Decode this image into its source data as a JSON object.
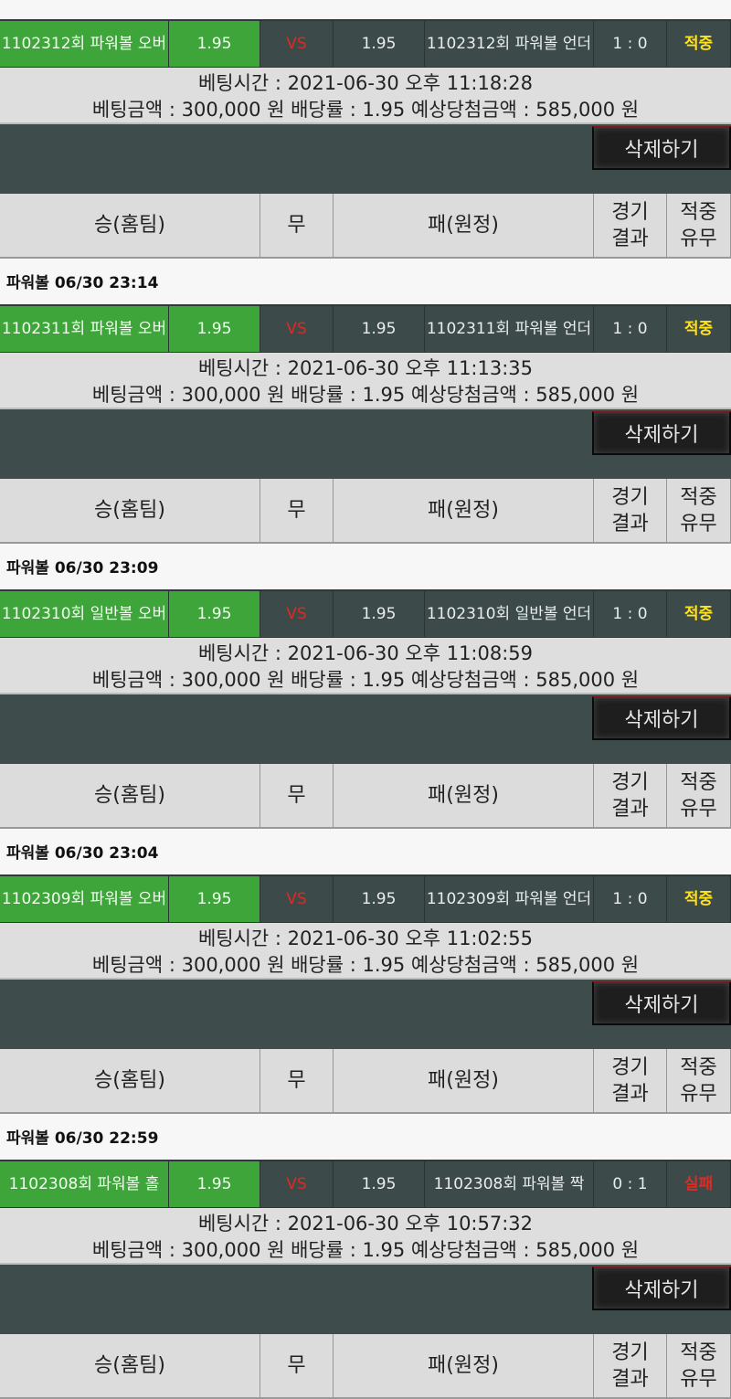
{
  "header_row": {
    "home": "승(홈팀)",
    "draw": "무",
    "away": "패(원정)",
    "result": "경기\n결과",
    "hit": "적중\n유무"
  },
  "delete_label": "삭제하기",
  "colors": {
    "selected": "#3ea53a",
    "vs": "#e02a22",
    "win": "#ffe21a",
    "lose": "#e02a22"
  },
  "bets": [
    {
      "label": "",
      "home": "1102312회 파워볼 오버",
      "home_odds": "1.95",
      "vs": "VS",
      "away_odds": "1.95",
      "away": "1102312회 파워볼 언더",
      "score": "1 : 0",
      "status": "적중",
      "win": true,
      "time": "베팅시간 : 2021-06-30 오후 11:18:28",
      "amount": "베팅금액 : 300,000 원 배당률 : 1.95 예상당첨금액 : 585,000 원"
    },
    {
      "label": "파워볼 06/30 23:14",
      "home": "1102311회 파워볼 오버",
      "home_odds": "1.95",
      "vs": "VS",
      "away_odds": "1.95",
      "away": "1102311회 파워볼 언더",
      "score": "1 : 0",
      "status": "적중",
      "win": true,
      "time": "베팅시간 : 2021-06-30 오후 11:13:35",
      "amount": "베팅금액 : 300,000 원 배당률 : 1.95 예상당첨금액 : 585,000 원"
    },
    {
      "label": "파워볼 06/30 23:09",
      "home": "1102310회 일반볼 오버",
      "home_odds": "1.95",
      "vs": "VS",
      "away_odds": "1.95",
      "away": "1102310회 일반볼 언더",
      "score": "1 : 0",
      "status": "적중",
      "win": true,
      "time": "베팅시간 : 2021-06-30 오후 11:08:59",
      "amount": "베팅금액 : 300,000 원 배당률 : 1.95 예상당첨금액 : 585,000 원"
    },
    {
      "label": "파워볼 06/30 23:04",
      "home": "1102309회 파워볼 오버",
      "home_odds": "1.95",
      "vs": "VS",
      "away_odds": "1.95",
      "away": "1102309회 파워볼 언더",
      "score": "1 : 0",
      "status": "적중",
      "win": true,
      "time": "베팅시간 : 2021-06-30 오후 11:02:55",
      "amount": "베팅금액 : 300,000 원 배당률 : 1.95 예상당첨금액 : 585,000 원"
    },
    {
      "label": "파워볼 06/30 22:59",
      "home": "1102308회 파워볼 홀",
      "home_odds": "1.95",
      "vs": "VS",
      "away_odds": "1.95",
      "away": "1102308회 파워볼 짝",
      "score": "0 : 1",
      "status": "실패",
      "win": false,
      "time": "베팅시간 : 2021-06-30 오후 10:57:32",
      "amount": "베팅금액 : 300,000 원 배당률 : 1.95 예상당첨금액 : 585,000 원"
    }
  ]
}
